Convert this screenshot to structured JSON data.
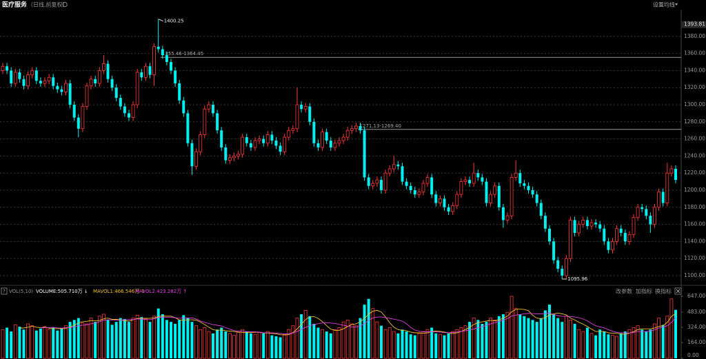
{
  "header": {
    "title": "医疗服务",
    "subtitle": "（日线,前复权）",
    "ma_setting": "设置均线"
  },
  "chart_data": [
    {
      "type": "candlestick",
      "up_color": "#ff3b3b",
      "down_color": "#00f0f0",
      "ylim": [
        1090.3,
        1411.3
      ],
      "yticks": [
        {
          "value": 1100,
          "label": "1100.00"
        },
        {
          "value": 1120,
          "label": "1120.00"
        },
        {
          "value": 1140,
          "label": "1140.00"
        },
        {
          "value": 1160,
          "label": "1160.00"
        },
        {
          "value": 1180,
          "label": "1180.00"
        },
        {
          "value": 1200,
          "label": "1200.00"
        },
        {
          "value": 1220,
          "label": "1220.00"
        },
        {
          "value": 1240,
          "label": "1240.00"
        },
        {
          "value": 1260,
          "label": "1260.00"
        },
        {
          "value": 1280,
          "label": "1280.00"
        },
        {
          "value": 1300,
          "label": "1300.00"
        },
        {
          "value": 1320,
          "label": "1320.00"
        },
        {
          "value": 1340,
          "label": "1340.00"
        },
        {
          "value": 1360,
          "label": "1360.00"
        },
        {
          "value": 1380,
          "label": "1380.00"
        }
      ],
      "grid": true,
      "axis_top_value": 1393.81,
      "max_label": 1400.25,
      "min_label": 1095.96,
      "levels": [
        {
          "value": 1355.46,
          "label": "1355.46-1364.45"
        },
        {
          "value": 1271.13,
          "label": "1271.13-1269.40"
        }
      ],
      "open": [
        1340,
        1345,
        1340,
        1325,
        1338,
        1330,
        1322,
        1335,
        1340,
        1328,
        1325,
        1328,
        1332,
        1322,
        1318,
        1315,
        1325,
        1300,
        1285,
        1272,
        1298,
        1322,
        1330,
        1325,
        1340,
        1348,
        1330,
        1320,
        1308,
        1298,
        1290,
        1285,
        1300,
        1338,
        1332,
        1345,
        1335,
        1368,
        1365,
        1358,
        1350,
        1340,
        1325,
        1305,
        1290,
        1255,
        1228,
        1245,
        1265,
        1295,
        1300,
        1290,
        1270,
        1250,
        1235,
        1238,
        1240,
        1242,
        1262,
        1255,
        1250,
        1258,
        1260,
        1255,
        1265,
        1258,
        1252,
        1245,
        1262,
        1270,
        1272,
        1300,
        1295,
        1298,
        1280,
        1255,
        1250,
        1268,
        1258,
        1250,
        1255,
        1258,
        1262,
        1270,
        1272,
        1275,
        1270,
        1215,
        1205,
        1208,
        1212,
        1200,
        1220,
        1225,
        1230,
        1228,
        1210,
        1205,
        1200,
        1195,
        1198,
        1208,
        1215,
        1195,
        1185,
        1190,
        1180,
        1175,
        1182,
        1195,
        1210,
        1212,
        1208,
        1220,
        1215,
        1210,
        1185,
        1195,
        1205,
        1180,
        1165,
        1170,
        1215,
        1220,
        1208,
        1205,
        1200,
        1195,
        1185,
        1170,
        1155,
        1140,
        1118,
        1108,
        1100,
        1120,
        1165,
        1150,
        1160,
        1165,
        1158,
        1162,
        1160,
        1155,
        1140,
        1130,
        1140,
        1155,
        1150,
        1140,
        1148,
        1168,
        1180,
        1178,
        1170,
        1160,
        1180,
        1198,
        1185,
        1220,
        1225
      ],
      "high": [
        1349,
        1349,
        1344,
        1342,
        1342,
        1334,
        1339,
        1344,
        1344,
        1332,
        1332,
        1336,
        1336,
        1326,
        1322,
        1329,
        1329,
        1304,
        1289,
        1302,
        1326,
        1334,
        1334,
        1344,
        1358,
        1352,
        1334,
        1324,
        1312,
        1302,
        1294,
        1304,
        1342,
        1342,
        1349,
        1349,
        1372,
        1400.25,
        1369,
        1362,
        1354,
        1344,
        1329,
        1309,
        1294,
        1259,
        1249,
        1269,
        1299,
        1304,
        1304,
        1294,
        1274,
        1254,
        1242,
        1244,
        1246,
        1266,
        1266,
        1259,
        1262,
        1264,
        1264,
        1269,
        1269,
        1262,
        1256,
        1266,
        1274,
        1276,
        1320,
        1304,
        1302,
        1302,
        1284,
        1259,
        1272,
        1272,
        1262,
        1259,
        1262,
        1266,
        1274,
        1276,
        1279,
        1279,
        1274,
        1219,
        1212,
        1216,
        1216,
        1224,
        1229,
        1240,
        1234,
        1232,
        1214,
        1209,
        1204,
        1202,
        1212,
        1219,
        1219,
        1199,
        1194,
        1194,
        1184,
        1186,
        1199,
        1214,
        1216,
        1216,
        1232,
        1224,
        1219,
        1214,
        1199,
        1209,
        1209,
        1184,
        1174,
        1219,
        1235,
        1224,
        1212,
        1209,
        1204,
        1199,
        1189,
        1174,
        1159,
        1144,
        1122,
        1112,
        1124,
        1169,
        1169,
        1164,
        1169,
        1169,
        1166,
        1166,
        1164,
        1159,
        1144,
        1144,
        1159,
        1159,
        1154,
        1152,
        1172,
        1184,
        1184,
        1182,
        1174,
        1184,
        1202,
        1202,
        1232,
        1229,
        1229
      ],
      "low": [
        1336,
        1336,
        1321,
        1321,
        1326,
        1318,
        1318,
        1331,
        1324,
        1321,
        1321,
        1324,
        1318,
        1314,
        1311,
        1311,
        1296,
        1281,
        1262,
        1268,
        1294,
        1318,
        1321,
        1321,
        1336,
        1326,
        1316,
        1304,
        1294,
        1286,
        1281,
        1281,
        1296,
        1328,
        1328,
        1331,
        1322,
        1361,
        1354,
        1346,
        1336,
        1321,
        1301,
        1286,
        1251,
        1218,
        1224,
        1241,
        1261,
        1291,
        1286,
        1266,
        1246,
        1231,
        1231,
        1234,
        1236,
        1238,
        1251,
        1246,
        1246,
        1254,
        1251,
        1251,
        1254,
        1248,
        1241,
        1241,
        1258,
        1266,
        1268,
        1291,
        1291,
        1276,
        1251,
        1246,
        1246,
        1254,
        1246,
        1246,
        1251,
        1254,
        1258,
        1266,
        1268,
        1266,
        1211,
        1201,
        1201,
        1204,
        1196,
        1196,
        1216,
        1221,
        1224,
        1206,
        1201,
        1196,
        1191,
        1191,
        1194,
        1204,
        1191,
        1181,
        1181,
        1176,
        1171,
        1171,
        1178,
        1191,
        1206,
        1204,
        1204,
        1211,
        1206,
        1181,
        1181,
        1191,
        1176,
        1156,
        1161,
        1166,
        1211,
        1204,
        1201,
        1196,
        1191,
        1181,
        1166,
        1151,
        1136,
        1114,
        1104,
        1095.96,
        1096,
        1116,
        1146,
        1146,
        1156,
        1154,
        1154,
        1156,
        1151,
        1136,
        1126,
        1126,
        1136,
        1146,
        1136,
        1136,
        1144,
        1164,
        1174,
        1166,
        1150,
        1156,
        1176,
        1181,
        1181,
        1216,
        1208
      ],
      "close": [
        1345,
        1340,
        1325,
        1338,
        1330,
        1322,
        1335,
        1340,
        1328,
        1325,
        1328,
        1332,
        1322,
        1318,
        1315,
        1325,
        1300,
        1285,
        1272,
        1298,
        1322,
        1330,
        1325,
        1340,
        1348,
        1330,
        1320,
        1308,
        1298,
        1290,
        1285,
        1300,
        1338,
        1332,
        1345,
        1335,
        1368,
        1365,
        1358,
        1350,
        1340,
        1325,
        1305,
        1290,
        1255,
        1228,
        1245,
        1265,
        1295,
        1300,
        1290,
        1270,
        1250,
        1235,
        1238,
        1240,
        1242,
        1262,
        1255,
        1250,
        1258,
        1260,
        1255,
        1265,
        1258,
        1252,
        1245,
        1262,
        1270,
        1272,
        1300,
        1295,
        1298,
        1280,
        1255,
        1250,
        1268,
        1258,
        1250,
        1255,
        1258,
        1262,
        1270,
        1272,
        1275,
        1270,
        1215,
        1205,
        1208,
        1212,
        1200,
        1220,
        1225,
        1230,
        1228,
        1210,
        1205,
        1200,
        1195,
        1198,
        1208,
        1215,
        1195,
        1185,
        1190,
        1180,
        1175,
        1182,
        1195,
        1210,
        1212,
        1208,
        1220,
        1215,
        1210,
        1185,
        1195,
        1205,
        1180,
        1165,
        1170,
        1215,
        1220,
        1208,
        1205,
        1200,
        1195,
        1185,
        1170,
        1155,
        1140,
        1118,
        1108,
        1100,
        1120,
        1165,
        1150,
        1160,
        1165,
        1158,
        1162,
        1160,
        1155,
        1140,
        1130,
        1140,
        1155,
        1150,
        1140,
        1148,
        1168,
        1180,
        1178,
        1170,
        1160,
        1180,
        1198,
        1185,
        1220,
        1225,
        1212
      ]
    },
    {
      "type": "volume",
      "title": "VOL(5,10)",
      "help_icon": "?",
      "buttons": [
        "改参数",
        "加指标",
        "换指标"
      ],
      "ylim": [
        0,
        647
      ],
      "yticks": [
        {
          "value": 0,
          "label": "0.00"
        },
        {
          "value": 164,
          "label": "164.00"
        },
        {
          "value": 324,
          "label": "324.00"
        },
        {
          "value": 483,
          "label": "483.00"
        },
        {
          "value": 647,
          "label": "647.00"
        }
      ],
      "bars": {
        "name": "VOLUME:505.710万 ↓",
        "color": "#ffffff",
        "values": [
          300,
          320,
          280,
          350,
          330,
          300,
          360,
          340,
          290,
          310,
          330,
          300,
          320,
          290,
          310,
          340,
          380,
          400,
          420,
          370,
          360,
          420,
          380,
          440,
          460,
          400,
          350,
          380,
          420,
          410,
          380,
          420,
          450,
          430,
          410,
          380,
          440,
          520,
          460,
          400,
          380,
          360,
          400,
          450,
          420,
          380,
          340,
          300,
          320,
          280,
          260,
          300,
          320,
          280,
          260,
          240,
          270,
          300,
          280,
          260,
          250,
          270,
          260,
          280,
          240,
          230,
          220,
          250,
          300,
          340,
          420,
          460,
          500,
          440,
          360,
          320,
          300,
          280,
          260,
          300,
          320,
          380,
          400,
          360,
          340,
          420,
          560,
          620,
          520,
          380,
          340,
          300,
          320,
          280,
          260,
          300,
          280,
          250,
          240,
          260,
          280,
          300,
          320,
          260,
          250,
          240,
          260,
          280,
          300,
          320,
          340,
          380,
          420,
          400,
          360,
          380,
          420,
          400,
          440,
          460,
          480,
          647,
          520,
          460,
          440,
          420,
          400,
          380,
          420,
          500,
          560,
          460,
          420,
          380,
          440,
          400,
          360,
          300,
          280,
          320,
          260,
          240,
          300,
          280,
          250,
          240,
          230,
          260,
          280,
          300,
          320,
          340,
          300,
          280,
          300,
          360,
          420,
          348,
          440,
          620,
          505.71
        ]
      },
      "series": [
        {
          "name": "MAVOL1:466.546万 ↑",
          "color": "#f2c230",
          "values": [
            null,
            null,
            null,
            null,
            316,
            316,
            324,
            336,
            324,
            320,
            326,
            314,
            310,
            310,
            310,
            312,
            328,
            344,
            370,
            382,
            386,
            394,
            390,
            394,
            412,
            420,
            406,
            406,
            402,
            392,
            388,
            402,
            416,
            418,
            418,
            418,
            422,
            436,
            442,
            440,
            440,
            424,
            400,
            398,
            402,
            402,
            398,
            378,
            352,
            324,
            300,
            292,
            296,
            288,
            284,
            280,
            274,
            270,
            270,
            270,
            272,
            272,
            264,
            264,
            260,
            256,
            246,
            244,
            248,
            268,
            306,
            354,
            404,
            432,
            436,
            416,
            384,
            340,
            304,
            292,
            292,
            308,
            332,
            352,
            360,
            380,
            416,
            460,
            492,
            500,
            484,
            432,
            372,
            324,
            300,
            292,
            288,
            274,
            266,
            266,
            262,
            266,
            280,
            284,
            282,
            274,
            266,
            258,
            266,
            280,
            300,
            324,
            352,
            372,
            380,
            388,
            396,
            392,
            400,
            420,
            440,
            485.4,
            509.4,
            513.4,
            509.4,
            497.4,
            448,
            420,
            412,
            424,
            452,
            464,
            472,
            464,
            452,
            420,
            400,
            376,
            356,
            332,
            304,
            280,
            280,
            280,
            266,
            262,
            260,
            252,
            252,
            262,
            278,
            300,
            308,
            308,
            308,
            316,
            332,
            341.6,
            373.6,
            437.6,
            466.55
          ]
        },
        {
          "name": "MAVOL2:423.282万 ↑",
          "color": "#e040e0",
          "values": [
            null,
            null,
            null,
            null,
            null,
            null,
            null,
            null,
            null,
            318,
            321,
            319,
            323,
            317,
            315,
            319,
            321,
            327,
            340,
            346,
            349,
            361,
            367,
            382,
            397,
            403,
            400,
            398,
            398,
            402,
            404,
            404,
            411,
            410,
            405,
            403,
            412,
            426,
            430,
            429,
            429,
            423,
            418,
            420,
            421,
            421,
            411,
            389,
            375,
            363,
            351,
            345,
            337,
            320,
            304,
            290,
            283,
            283,
            279,
            277,
            276,
            273,
            267,
            267,
            265,
            264,
            259,
            254,
            256,
            264,
            281,
            300,
            324,
            340,
            352,
            361,
            369,
            372,
            368,
            364,
            354,
            346,
            336,
            328,
            326,
            336,
            362,
            396,
            422,
            430,
            432,
            424,
            416,
            408,
            400,
            388,
            360,
            323,
            295,
            283,
            277,
            277,
            277,
            275,
            274,
            268,
            266,
            269,
            275,
            281,
            287,
            295,
            305,
            319,
            330,
            344,
            360,
            372,
            386,
            400,
            414,
            440.7,
            450.7,
            456.7,
            464.7,
            468.7,
            466.7,
            464.7,
            462.7,
            466.7,
            474.7,
            456,
            446,
            438,
            438,
            436,
            432,
            424,
            410,
            392,
            362,
            340,
            328,
            318,
            299,
            283,
            270,
            266,
            266,
            264,
            270,
            280,
            280,
            280,
            285,
            297,
            316,
            324.8,
            340.8,
            372.8,
            423.28
          ]
        }
      ]
    }
  ]
}
